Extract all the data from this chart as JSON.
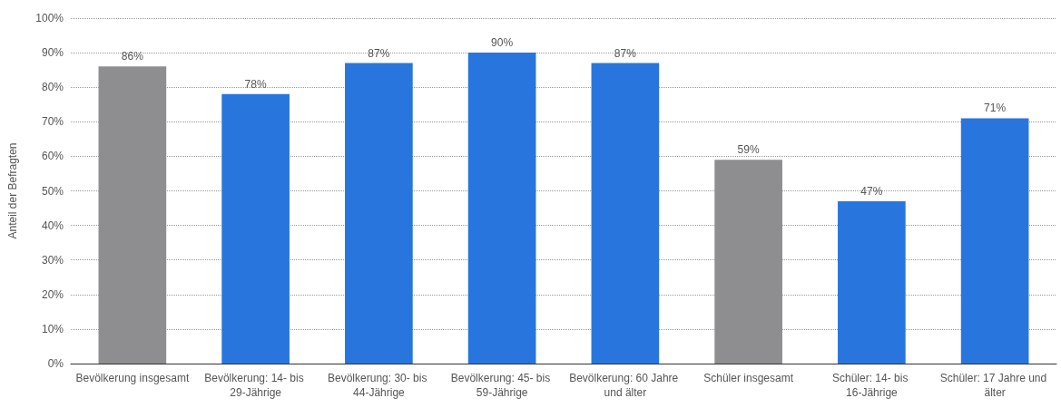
{
  "chart_data": {
    "type": "bar",
    "ylabel": "Anteil der Befragten",
    "categories": [
      "Bevölkerung insgesamt",
      "Bevölkerung: 14- bis 29-Jährige",
      "Bevölkerung: 30- bis 44-Jährige",
      "Bevölkerung: 45- bis 59-Jährige",
      "Bevölkerung: 60 Jahre und älter",
      "Schüler insgesamt",
      "Schüler: 14- bis 16-Jährige",
      "Schüler: 17 Jahre und älter"
    ],
    "values": [
      86,
      78,
      87,
      90,
      87,
      59,
      47,
      71
    ],
    "colors": [
      "#8e8e90",
      "#2876dd",
      "#2876dd",
      "#2876dd",
      "#2876dd",
      "#8e8e90",
      "#2876dd",
      "#2876dd"
    ],
    "value_labels": [
      "86%",
      "78%",
      "87%",
      "90%",
      "87%",
      "59%",
      "47%",
      "71%"
    ],
    "ylim": [
      0,
      100
    ],
    "yticks": [
      {
        "value": 0,
        "label": "0%"
      },
      {
        "value": 10,
        "label": "10%"
      },
      {
        "value": 20,
        "label": "20%"
      },
      {
        "value": 30,
        "label": "30%"
      },
      {
        "value": 40,
        "label": "40%"
      },
      {
        "value": 50,
        "label": "50%"
      },
      {
        "value": 60,
        "label": "60%"
      },
      {
        "value": 70,
        "label": "70%"
      },
      {
        "value": 80,
        "label": "80%"
      },
      {
        "value": 90,
        "label": "90%"
      },
      {
        "value": 100,
        "label": "100%"
      }
    ],
    "grid": "y"
  }
}
